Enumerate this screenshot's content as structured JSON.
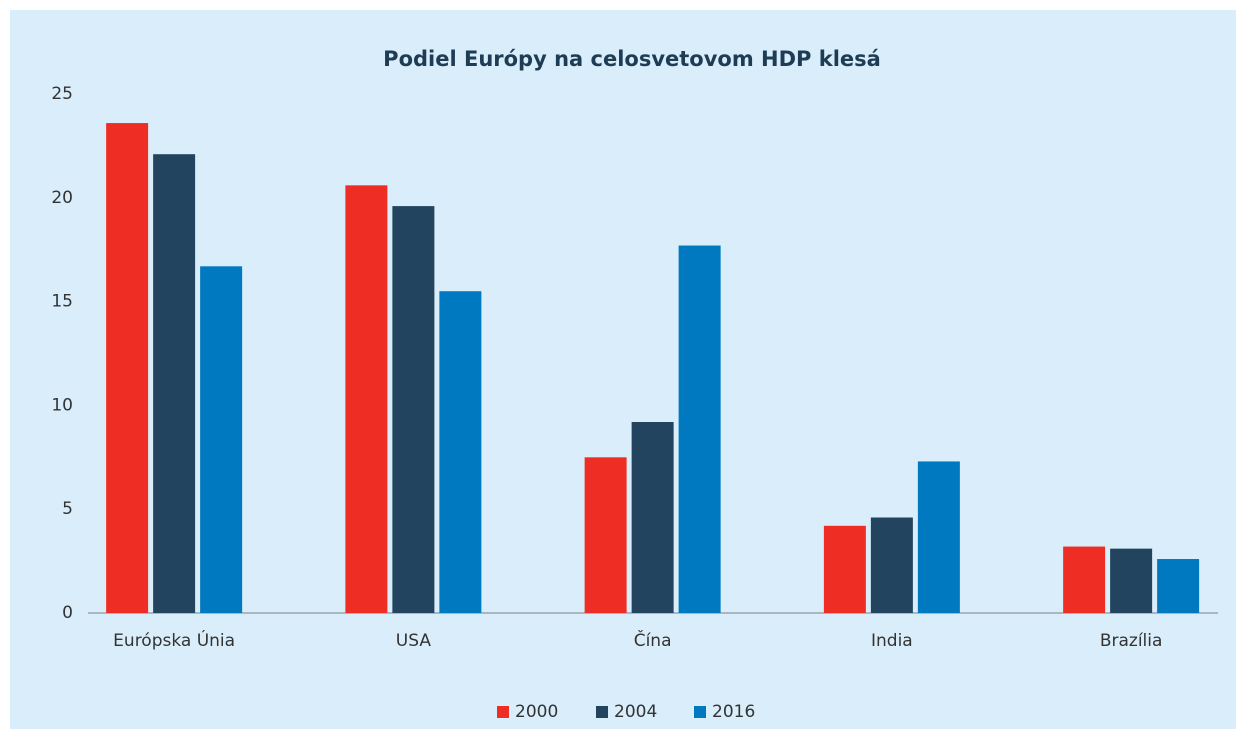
{
  "chart_data": {
    "type": "bar",
    "title": "Podiel Európy na celosvetovom HDP klesá",
    "categories": [
      "Európska Únia",
      "USA",
      "Čína",
      "India",
      "Brazília"
    ],
    "series": [
      {
        "name": "2000",
        "color": "#ee2e24",
        "values": [
          23.6,
          20.6,
          7.5,
          4.2,
          3.2
        ]
      },
      {
        "name": "2004",
        "color": "#22445e",
        "values": [
          22.1,
          19.6,
          9.2,
          4.6,
          3.1
        ]
      },
      {
        "name": "2016",
        "color": "#0079c1",
        "values": [
          16.7,
          15.5,
          17.7,
          7.3,
          2.6
        ]
      }
    ],
    "ylim": [
      0,
      25
    ],
    "yticks": [
      0,
      5,
      10,
      15,
      20,
      25
    ],
    "grid": false,
    "legend": "bottom"
  }
}
